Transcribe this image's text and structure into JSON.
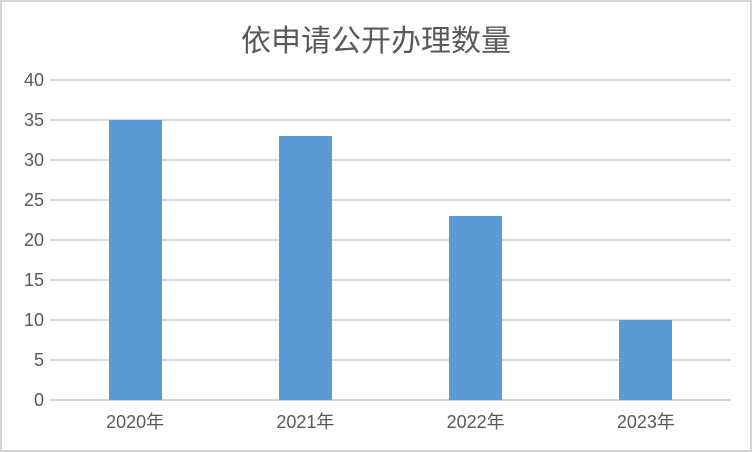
{
  "chart_data": {
    "type": "bar",
    "title": "依申请公开办理数量",
    "categories": [
      "2020年",
      "2021年",
      "2022年",
      "2023年"
    ],
    "values": [
      35,
      33,
      23,
      10
    ],
    "xlabel": "",
    "ylabel": "",
    "ylim": [
      0,
      40
    ],
    "yticks": [
      0,
      5,
      10,
      15,
      20,
      25,
      30,
      35,
      40
    ],
    "grid": "horizontal",
    "legend": "none",
    "colors": {
      "bar": "#5B9BD5",
      "gridline": "#D9D9D9",
      "axis_line": "#D3D3D3",
      "text": "#595959",
      "background": "#FFFFFF",
      "border": "#D5D5D5"
    }
  }
}
